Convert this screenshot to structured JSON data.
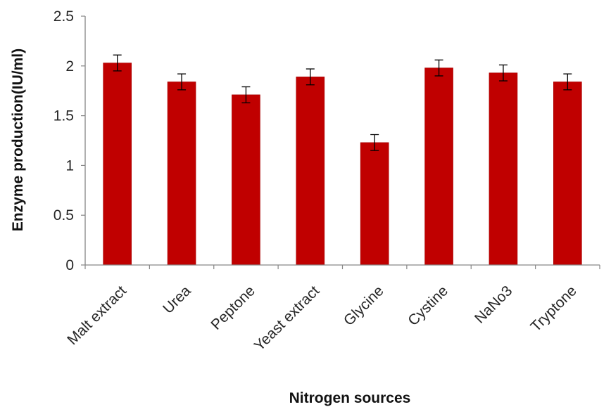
{
  "chart_data": {
    "type": "bar",
    "title": "",
    "xlabel": "Nitrogen sources",
    "ylabel": "Enzyme production(IU/ml)",
    "categories": [
      "Malt extract",
      "Urea",
      "Peptone",
      "Yeast extract",
      "Glycine",
      "Cystine",
      "NaNo3",
      "Tryptone"
    ],
    "series": [
      {
        "values": [
          2.03,
          1.84,
          1.71,
          1.89,
          1.23,
          1.98,
          1.93,
          1.84
        ],
        "error": [
          0.08,
          0.08,
          0.08,
          0.08,
          0.08,
          0.08,
          0.08,
          0.08
        ]
      }
    ],
    "ylim": [
      0,
      2.5
    ],
    "yticks": [
      "0",
      "0.5",
      "1",
      "1.5",
      "2",
      "2.5"
    ],
    "ytick_values": [
      0,
      0.5,
      1,
      1.5,
      2,
      2.5
    ],
    "grid": false,
    "legend": "none",
    "colors": {
      "bar": "#C00000",
      "bar_edge": "#A50000",
      "axis": "#868686",
      "error_bar": "#000000"
    }
  }
}
